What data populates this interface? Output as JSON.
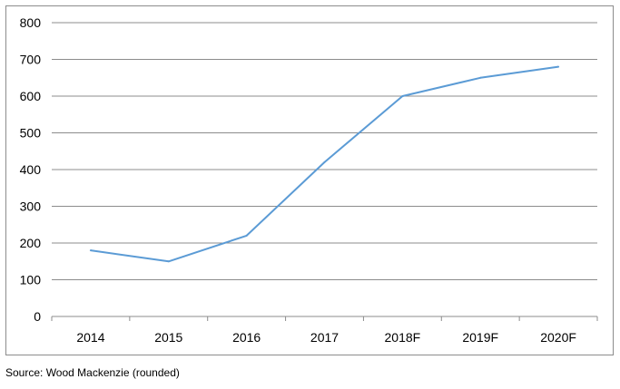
{
  "chart_data": {
    "type": "line",
    "title": "",
    "xlabel": "",
    "ylabel": "",
    "categories": [
      "2014",
      "2015",
      "2016",
      "2017",
      "2018F",
      "2019F",
      "2020F"
    ],
    "series": [
      {
        "values": [
          180,
          150,
          220,
          420,
          600,
          650,
          680
        ],
        "color": "#5b9bd5"
      }
    ],
    "ylim": [
      0,
      800
    ],
    "yticks": [
      "0",
      "100",
      "200",
      "300",
      "400",
      "500",
      "600",
      "700",
      "800"
    ],
    "grid": true,
    "legend": "none"
  },
  "source_note": "Source: Wood Mackenzie (rounded)"
}
